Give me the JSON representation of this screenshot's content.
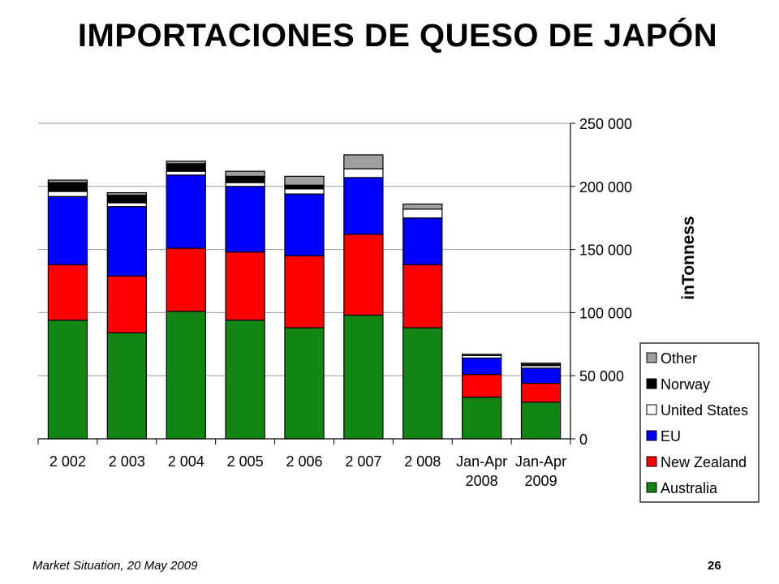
{
  "title": "IMPORTACIONES DE QUESO DE JAPÓN",
  "footer": {
    "left": "Market Situation, 20 May 2009",
    "page": "26"
  },
  "colors": {
    "Australia": "#138513",
    "New Zealand": "#ff0000",
    "EU": "#0000ff",
    "United States": "#ffffff",
    "Norway": "#000000",
    "Other": "#a0a0a0"
  },
  "chart_data": {
    "type": "bar",
    "stacked": true,
    "categories": [
      "2 002",
      "2 003",
      "2 004",
      "2 005",
      "2 006",
      "2 007",
      "2 008",
      "Jan-Apr 2008",
      "Jan-Apr 2009"
    ],
    "series": [
      {
        "name": "Australia",
        "values": [
          94000,
          84000,
          101000,
          94000,
          88000,
          98000,
          88000,
          33000,
          29000
        ]
      },
      {
        "name": "New Zealand",
        "values": [
          44000,
          45000,
          50000,
          54000,
          57000,
          64000,
          50000,
          18000,
          15000
        ]
      },
      {
        "name": "EU",
        "values": [
          54000,
          55000,
          58000,
          52000,
          49000,
          45000,
          37000,
          13000,
          12000
        ]
      },
      {
        "name": "United States",
        "values": [
          4000,
          3000,
          3000,
          3000,
          4000,
          7000,
          7000,
          2000,
          2000
        ]
      },
      {
        "name": "Norway",
        "values": [
          7000,
          6000,
          6000,
          5000,
          3000,
          0,
          0,
          0,
          1000
        ]
      },
      {
        "name": "Other",
        "values": [
          2000,
          2000,
          2000,
          4000,
          7000,
          11000,
          4000,
          1000,
          1000
        ]
      }
    ],
    "ylabel": "inTonness",
    "ylim": [
      0,
      250000
    ],
    "yticks": [
      0,
      50000,
      100000,
      150000,
      200000,
      250000
    ],
    "ytick_labels": [
      "0",
      "50 000",
      "100 000",
      "150 000",
      "200 000",
      "250 000"
    ],
    "y_axis_side": "right",
    "grid": true,
    "legend_position": "bottom-right",
    "legend_order": [
      "Other",
      "Norway",
      "United States",
      "EU",
      "New Zealand",
      "Australia"
    ]
  }
}
